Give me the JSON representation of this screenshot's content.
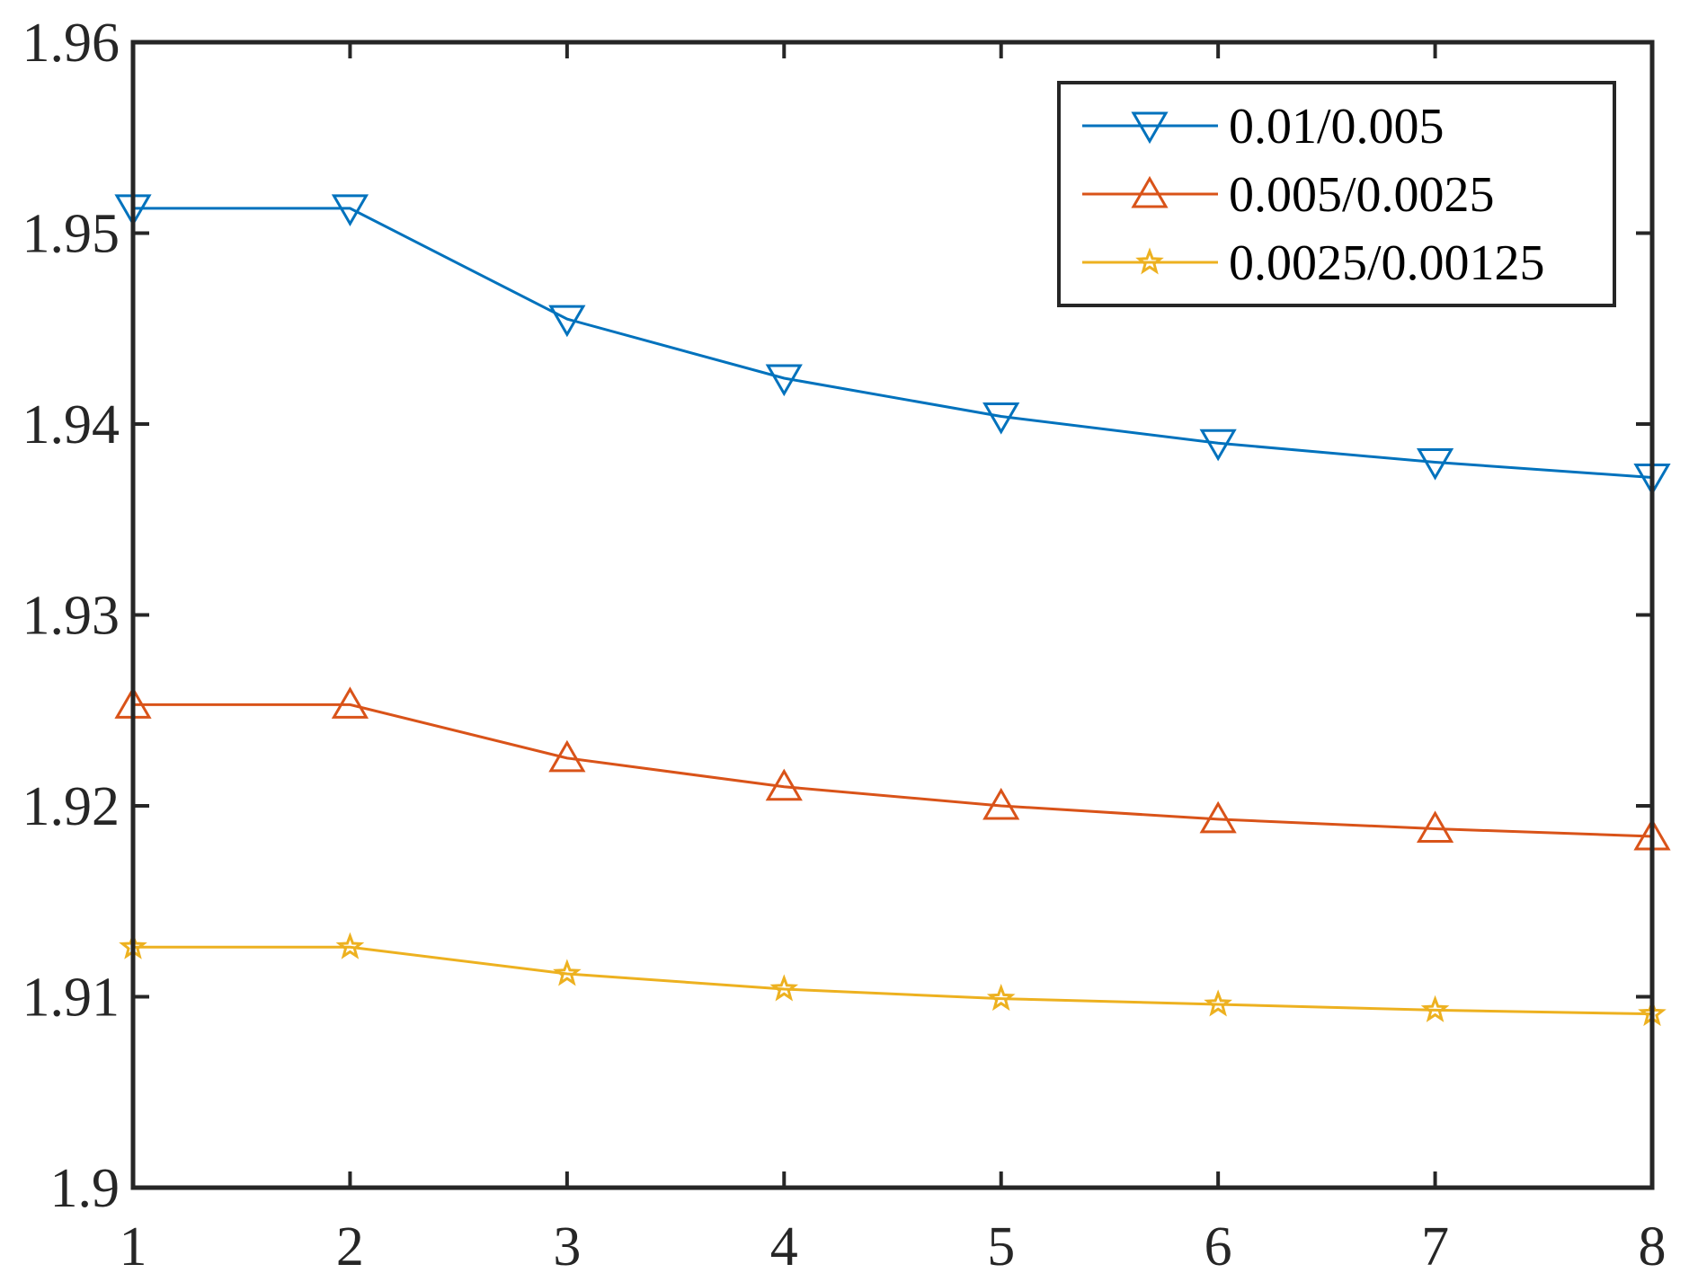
{
  "chart_data": {
    "type": "line",
    "title": "",
    "xlabel": "",
    "ylabel": "",
    "x": [
      1,
      2,
      3,
      4,
      5,
      6,
      7,
      8
    ],
    "xlim": [
      1,
      8
    ],
    "ylim": [
      1.9,
      1.96
    ],
    "xticks": [
      1,
      2,
      3,
      4,
      5,
      6,
      7,
      8
    ],
    "yticks": [
      1.9,
      1.91,
      1.92,
      1.93,
      1.94,
      1.95,
      1.96
    ],
    "xtick_labels": [
      "1",
      "2",
      "3",
      "4",
      "5",
      "6",
      "7",
      "8"
    ],
    "ytick_labels": [
      "1.9",
      "1.91",
      "1.92",
      "1.93",
      "1.94",
      "1.95",
      "1.96"
    ],
    "grid": false,
    "legend_position": "top-right",
    "series": [
      {
        "name": "0.01/0.005",
        "color": "#0072BD",
        "marker": "triangle-down",
        "values": [
          1.9513,
          1.9513,
          1.9455,
          1.9424,
          1.9404,
          1.939,
          1.938,
          1.9372
        ]
      },
      {
        "name": "0.005/0.0025",
        "color": "#D95319",
        "marker": "triangle-up",
        "values": [
          1.9253,
          1.9253,
          1.9225,
          1.921,
          1.92,
          1.9193,
          1.9188,
          1.9184
        ]
      },
      {
        "name": "0.0025/0.00125",
        "color": "#EDB120",
        "marker": "star",
        "values": [
          1.9126,
          1.9126,
          1.9112,
          1.9104,
          1.9099,
          1.9096,
          1.9093,
          1.9091
        ]
      }
    ]
  }
}
